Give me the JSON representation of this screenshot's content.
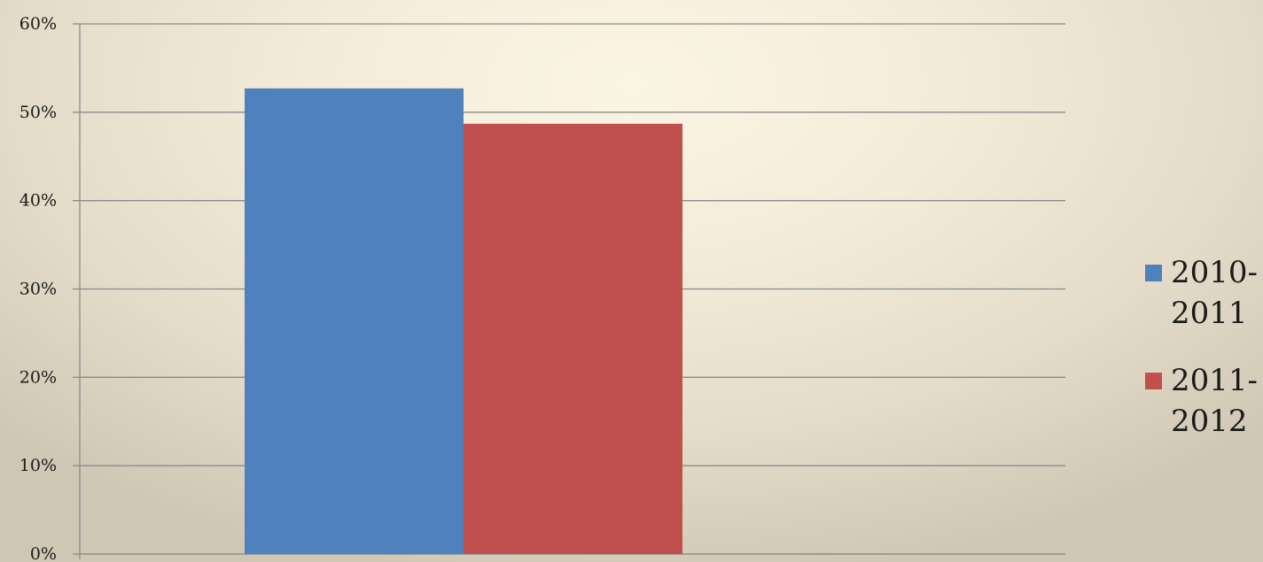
{
  "chart_data": {
    "type": "bar",
    "title": "",
    "xlabel": "",
    "ylabel": "",
    "categories": [
      ""
    ],
    "series": [
      {
        "name": "2010-2011",
        "name_lines": [
          "2010-",
          "2011"
        ],
        "values": [
          52.7
        ],
        "color": "#4f81bd"
      },
      {
        "name": "2011-2012",
        "name_lines": [
          "2011-",
          "2012"
        ],
        "values": [
          48.7
        ],
        "color": "#c0504d"
      }
    ],
    "ylim": [
      0,
      60
    ],
    "yticks": [
      {
        "value": 0,
        "label": "0%"
      },
      {
        "value": 10,
        "label": "10%"
      },
      {
        "value": 20,
        "label": "20%"
      },
      {
        "value": 30,
        "label": "30%"
      },
      {
        "value": 40,
        "label": "40%"
      },
      {
        "value": 50,
        "label": "50%"
      },
      {
        "value": 60,
        "label": "60%"
      }
    ],
    "grid": true,
    "legend_position": "right"
  }
}
